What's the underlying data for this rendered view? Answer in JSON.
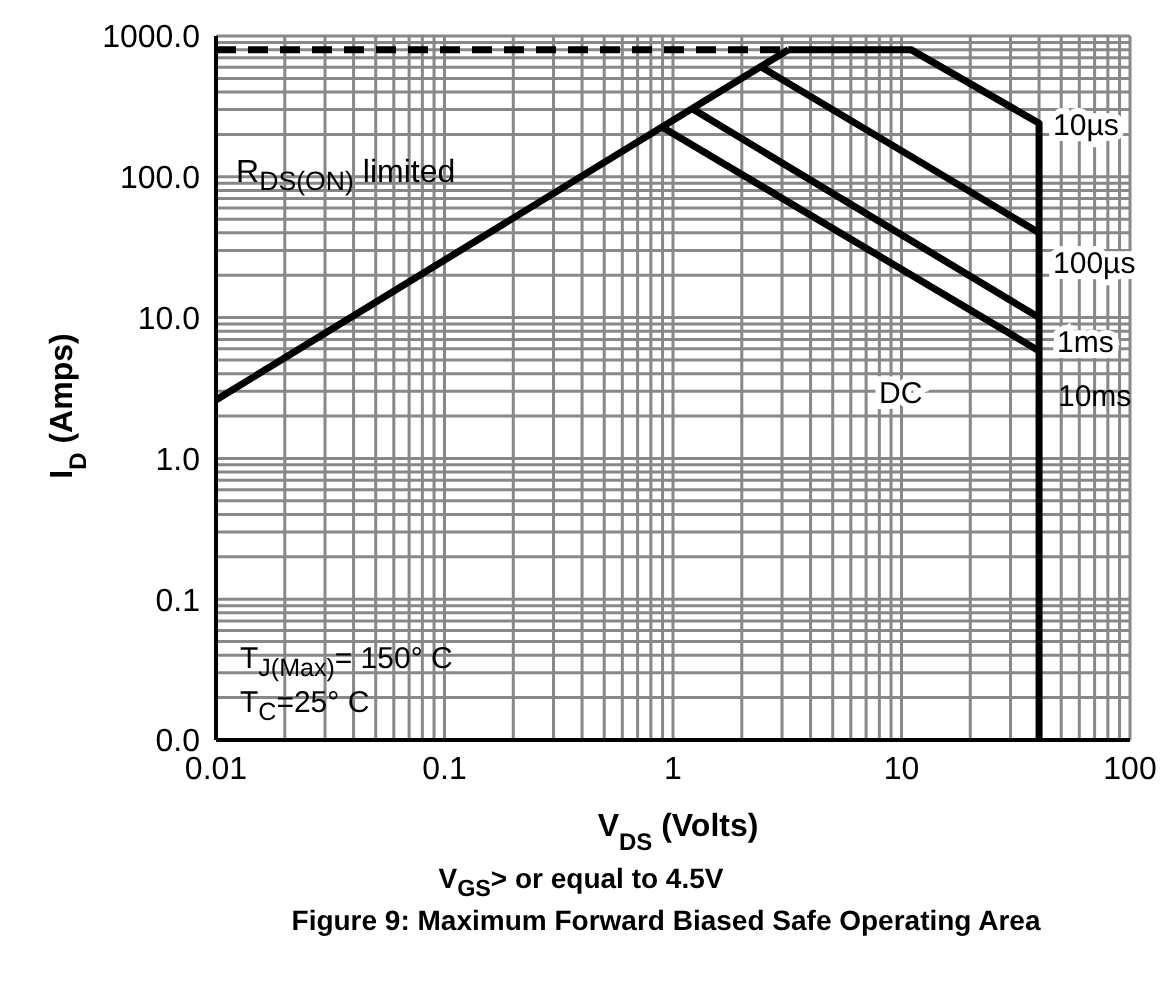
{
  "chart_data": {
    "type": "line",
    "title": "Figure 9: Maximum Forward Biased Safe Operating Area",
    "xlabel": "V$_{DS}$ (Volts)",
    "ylabel": "I$_{D}$ (Amps)",
    "log": "xy",
    "grid": true,
    "marker": "none",
    "xlim": [
      0.01,
      100
    ],
    "ylim": [
      0.01,
      1000
    ],
    "xticks": [
      0.01,
      {
        "value": 0.02,
        "label": null
      },
      {
        "value": 0.03,
        "label": null
      },
      {
        "value": 0.04,
        "label": null
      },
      {
        "value": 0.05,
        "label": null
      },
      {
        "value": 0.06,
        "label": null
      },
      {
        "value": 0.07,
        "label": null
      },
      {
        "value": 0.08,
        "label": null
      },
      {
        "value": 0.09,
        "label": null
      },
      0.1,
      {
        "value": 0.2,
        "label": null
      },
      {
        "value": 0.3,
        "label": null
      },
      {
        "value": 0.4,
        "label": null
      },
      {
        "value": 0.5,
        "label": null
      },
      {
        "value": 0.6,
        "label": null
      },
      {
        "value": 0.7,
        "label": null
      },
      {
        "value": 0.8,
        "label": null
      },
      {
        "value": 0.9,
        "label": null
      },
      1,
      {
        "value": 2,
        "label": null
      },
      {
        "value": 3,
        "label": null
      },
      {
        "value": 4,
        "label": null
      },
      {
        "value": 5,
        "label": null
      },
      {
        "value": 6,
        "label": null
      },
      {
        "value": 7,
        "label": null
      },
      {
        "value": 8,
        "label": null
      },
      {
        "value": 9,
        "label": null
      },
      10,
      {
        "value": 20,
        "label": null
      },
      {
        "value": 30,
        "label": null
      },
      {
        "value": 40,
        "label": null
      },
      {
        "value": 50,
        "label": null
      },
      {
        "value": 60,
        "label": null
      },
      {
        "value": 70,
        "label": null
      },
      {
        "value": 80,
        "label": null
      },
      {
        "value": 90,
        "label": null
      },
      100
    ],
    "yticks": [
      {
        "value": 0.01,
        "label": "0.0"
      },
      {
        "value": 0.02,
        "label": null
      },
      {
        "value": 0.03,
        "label": null
      },
      {
        "value": 0.04,
        "label": null
      },
      {
        "value": 0.05,
        "label": null
      },
      {
        "value": 0.06,
        "label": null
      },
      {
        "value": 0.07,
        "label": null
      },
      {
        "value": 0.08,
        "label": null
      },
      {
        "value": 0.09,
        "label": null
      },
      0.1,
      {
        "value": 0.2,
        "label": null
      },
      {
        "value": 0.3,
        "label": null
      },
      {
        "value": 0.4,
        "label": null
      },
      {
        "value": 0.5,
        "label": null
      },
      {
        "value": 0.6,
        "label": null
      },
      {
        "value": 0.7,
        "label": null
      },
      {
        "value": 0.8,
        "label": null
      },
      {
        "value": 0.9,
        "label": null
      },
      {
        "value": 1,
        "label": "1.0"
      },
      {
        "value": 2,
        "label": null
      },
      {
        "value": 3,
        "label": null
      },
      {
        "value": 4,
        "label": null
      },
      {
        "value": 5,
        "label": null
      },
      {
        "value": 6,
        "label": null
      },
      {
        "value": 7,
        "label": null
      },
      {
        "value": 8,
        "label": null
      },
      {
        "value": 9,
        "label": null
      },
      {
        "value": 10,
        "label": "10.0"
      },
      {
        "value": 20,
        "label": null
      },
      {
        "value": 30,
        "label": null
      },
      {
        "value": 40,
        "label": null
      },
      {
        "value": 50,
        "label": null
      },
      {
        "value": 60,
        "label": null
      },
      {
        "value": 70,
        "label": null
      },
      {
        "value": 80,
        "label": null
      },
      {
        "value": 90,
        "label": null
      },
      {
        "value": 100,
        "label": "100.0"
      },
      {
        "value": 200,
        "label": null
      },
      {
        "value": 300,
        "label": null
      },
      {
        "value": 400,
        "label": null
      },
      {
        "value": 500,
        "label": null
      },
      {
        "value": 600,
        "label": null
      },
      {
        "value": 700,
        "label": null
      },
      {
        "value": 800,
        "label": null
      },
      {
        "value": 900,
        "label": null
      },
      {
        "value": 1000,
        "label": "1000.0"
      }
    ],
    "series": [
      {
        "color": "#000000",
        "line_style": "dashed",
        "x": [
          0.01,
          3.2
        ],
        "values": [
          800,
          800
        ]
      },
      {
        "color": "#000000",
        "x": [
          0.01,
          3.2
        ],
        "values": [
          2.6,
          800
        ]
      },
      {
        "name": "10µs",
        "color": "#000000",
        "x": [
          3.2,
          11,
          40,
          40
        ],
        "values": [
          800,
          800,
          240,
          0.01
        ]
      },
      {
        "name": "100µs",
        "color": "#000000",
        "x": [
          2.4,
          40
        ],
        "values": [
          610,
          40
        ]
      },
      {
        "name": "1ms",
        "color": "#000000",
        "x": [
          1.23,
          40
        ],
        "values": [
          300,
          10
        ]
      },
      {
        "name": "DC",
        "color": "#000000",
        "x": [
          0.91,
          40
        ],
        "values": [
          222,
          5.8
        ]
      }
    ],
    "annotations": [
      "R$_{DS(ON)}$ limited",
      "10ms",
      "T$_{J(Max)}$= 150° C",
      "T$_{C}$=25° C",
      "V$_{GS}$> or equal to 4.5V"
    ]
  }
}
